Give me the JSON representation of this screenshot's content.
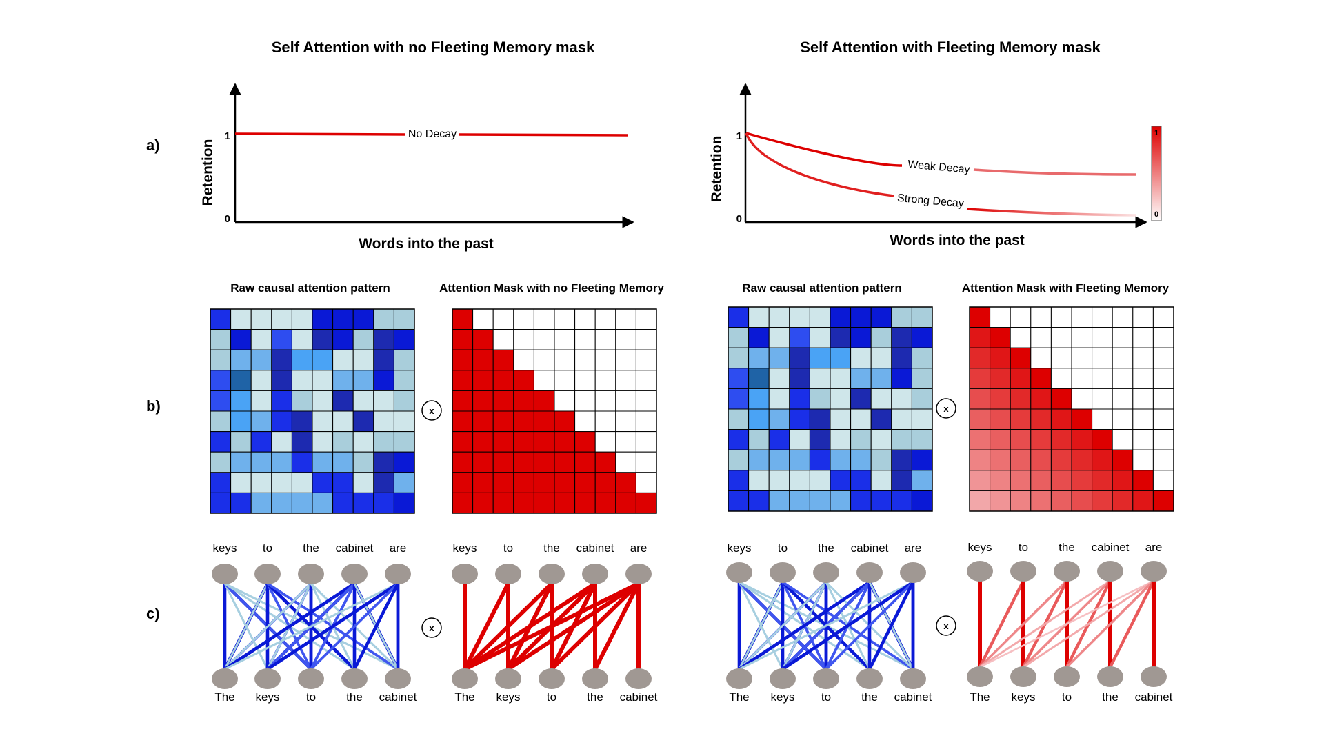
{
  "titles": {
    "left": "Self Attention with no Fleeting Memory mask",
    "right": "Self Attention with Fleeting Memory mask"
  },
  "row_labels": {
    "a": "a)",
    "b": "b)",
    "c": "c)"
  },
  "axes": {
    "ylabel": "Retention",
    "xlabel": "Words into the past",
    "tick_one": "1",
    "tick_zero": "0"
  },
  "curve_labels": {
    "no_decay": "No Decay",
    "weak_decay": "Weak Decay",
    "strong_decay": "Strong Decay"
  },
  "colorbar": {
    "max_label": "1",
    "min_label": "0"
  },
  "panel_titles": {
    "raw": "Raw causal attention pattern",
    "mask_no": "Attention Mask with no Fleeting Memory",
    "mask_yes": "Attention Mask with Fleeting Memory"
  },
  "operator": "x",
  "top_words": [
    "keys",
    "to",
    "the",
    "cabinet",
    "are"
  ],
  "bottom_words": [
    "The",
    "keys",
    "to",
    "the",
    "cabinet"
  ],
  "colors": {
    "red": "#dd0000",
    "node": "#a09893",
    "blue_scale": [
      "#cfe6ea",
      "#a9cedb",
      "#6fb1ec",
      "#4aa3f5",
      "#2e4df0",
      "#1a2fe8",
      "#0a19d6",
      "#1d2ab0",
      "#1f63a6"
    ]
  },
  "raw_heatmap": [
    [
      5,
      0,
      0,
      0,
      0,
      6,
      6,
      6,
      1,
      1
    ],
    [
      1,
      6,
      0,
      4,
      0,
      7,
      6,
      1,
      7,
      6
    ],
    [
      1,
      2,
      2,
      7,
      3,
      3,
      0,
      0,
      7,
      1
    ],
    [
      4,
      8,
      0,
      7,
      0,
      0,
      2,
      2,
      6,
      1
    ],
    [
      4,
      3,
      0,
      5,
      1,
      0,
      7,
      0,
      0,
      1
    ],
    [
      1,
      3,
      2,
      5,
      7,
      0,
      0,
      7,
      0,
      0
    ],
    [
      5,
      1,
      5,
      0,
      7,
      0,
      1,
      0,
      1,
      1
    ],
    [
      1,
      2,
      2,
      2,
      5,
      2,
      2,
      1,
      7,
      6
    ],
    [
      5,
      0,
      0,
      0,
      0,
      5,
      5,
      0,
      7,
      2
    ],
    [
      5,
      5,
      2,
      2,
      2,
      2,
      5,
      5,
      5,
      6
    ]
  ],
  "mask_no_fleeting": [
    [
      1,
      0,
      0,
      0,
      0,
      0,
      0,
      0,
      0,
      0
    ],
    [
      1,
      1,
      0,
      0,
      0,
      0,
      0,
      0,
      0,
      0
    ],
    [
      1,
      1,
      1,
      0,
      0,
      0,
      0,
      0,
      0,
      0
    ],
    [
      1,
      1,
      1,
      1,
      0,
      0,
      0,
      0,
      0,
      0
    ],
    [
      1,
      1,
      1,
      1,
      1,
      0,
      0,
      0,
      0,
      0
    ],
    [
      1,
      1,
      1,
      1,
      1,
      1,
      0,
      0,
      0,
      0
    ],
    [
      1,
      1,
      1,
      1,
      1,
      1,
      1,
      0,
      0,
      0
    ],
    [
      1,
      1,
      1,
      1,
      1,
      1,
      1,
      1,
      0,
      0
    ],
    [
      1,
      1,
      1,
      1,
      1,
      1,
      1,
      1,
      1,
      0
    ],
    [
      1,
      1,
      1,
      1,
      1,
      1,
      1,
      1,
      1,
      1
    ]
  ],
  "mask_fleeting": [
    [
      1.0,
      0,
      0,
      0,
      0,
      0,
      0,
      0,
      0,
      0
    ],
    [
      0.9,
      1.0,
      0,
      0,
      0,
      0,
      0,
      0,
      0,
      0
    ],
    [
      0.82,
      0.9,
      1.0,
      0,
      0,
      0,
      0,
      0,
      0,
      0
    ],
    [
      0.74,
      0.82,
      0.9,
      1.0,
      0,
      0,
      0,
      0,
      0,
      0
    ],
    [
      0.66,
      0.74,
      0.82,
      0.9,
      1.0,
      0,
      0,
      0,
      0,
      0
    ],
    [
      0.58,
      0.66,
      0.74,
      0.82,
      0.9,
      1.0,
      0,
      0,
      0,
      0
    ],
    [
      0.5,
      0.58,
      0.66,
      0.74,
      0.82,
      0.9,
      1.0,
      0,
      0,
      0
    ],
    [
      0.42,
      0.5,
      0.58,
      0.66,
      0.74,
      0.82,
      0.9,
      1.0,
      0,
      0
    ],
    [
      0.34,
      0.42,
      0.5,
      0.58,
      0.66,
      0.74,
      0.82,
      0.9,
      1.0,
      0
    ],
    [
      0.26,
      0.34,
      0.42,
      0.5,
      0.58,
      0.66,
      0.74,
      0.82,
      0.9,
      1.0
    ]
  ],
  "graph_weights": {
    "raw_left": [
      [
        1,
        0,
        2,
        0,
        0
      ],
      [
        2,
        1,
        0,
        2,
        0
      ],
      [
        1,
        1,
        2,
        0,
        0
      ],
      [
        2,
        2,
        1,
        1,
        2
      ],
      [
        0,
        2,
        0,
        1,
        2
      ]
    ],
    "raw_right": [
      [
        2,
        0,
        1,
        0,
        0
      ],
      [
        0,
        2,
        1,
        2,
        1
      ],
      [
        0,
        0,
        2,
        0,
        0
      ],
      [
        2,
        1,
        1,
        2,
        0
      ],
      [
        0,
        2,
        1,
        2,
        2
      ]
    ],
    "mask_no": [
      [
        1,
        0,
        0,
        0,
        0
      ],
      [
        1,
        1,
        0,
        0,
        0
      ],
      [
        1,
        1,
        1,
        0,
        0
      ],
      [
        1,
        1,
        1,
        1,
        0
      ],
      [
        1,
        1,
        1,
        1,
        1
      ]
    ],
    "mask_yes": [
      [
        1.0,
        0,
        0,
        0,
        0
      ],
      [
        0.6,
        1.0,
        0,
        0,
        0
      ],
      [
        0.4,
        0.6,
        1.0,
        0,
        0
      ],
      [
        0.25,
        0.4,
        0.6,
        1.0,
        0
      ],
      [
        0.15,
        0.25,
        0.4,
        0.6,
        1.0
      ]
    ]
  }
}
